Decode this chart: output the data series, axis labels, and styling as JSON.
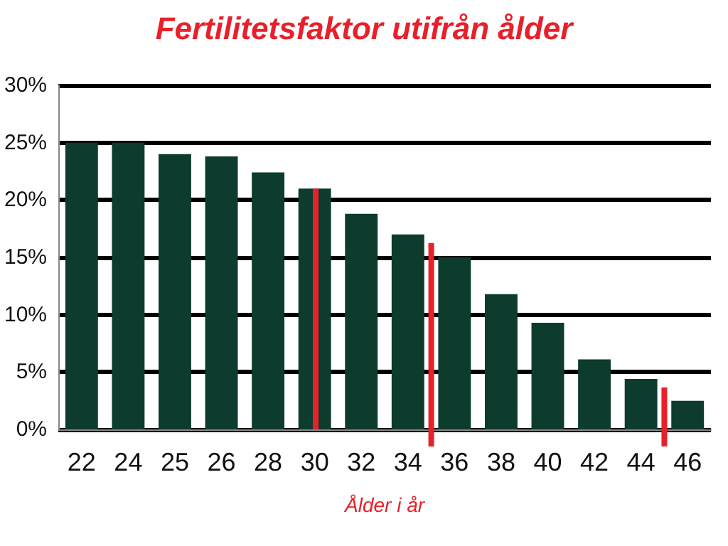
{
  "chart_data": {
    "type": "bar",
    "title": "Fertilitetsfaktor utifrån ålder",
    "xlabel": "Ålder i år",
    "categories": [
      "22",
      "24",
      "25",
      "26",
      "28",
      "30",
      "32",
      "34",
      "36",
      "38",
      "40",
      "42",
      "44",
      "46"
    ],
    "values": [
      25,
      25,
      24,
      23.8,
      22.4,
      21,
      18.8,
      17,
      15,
      11.8,
      9.3,
      6.1,
      4.4,
      2.5
    ],
    "color": "#0d3b2e",
    "ylim": [
      0,
      30
    ],
    "yticks": [
      {
        "value": 0,
        "label": "0%"
      },
      {
        "value": 5,
        "label": "5%"
      },
      {
        "value": 10,
        "label": "10%"
      },
      {
        "value": 15,
        "label": "15%"
      },
      {
        "value": 20,
        "label": "20%"
      },
      {
        "value": 25,
        "label": "25%"
      },
      {
        "value": 30,
        "label": "30%"
      }
    ],
    "grid": "y",
    "ref_lines": [
      {
        "axis": "x",
        "value": "30",
        "color": "#e8202a"
      }
    ]
  }
}
